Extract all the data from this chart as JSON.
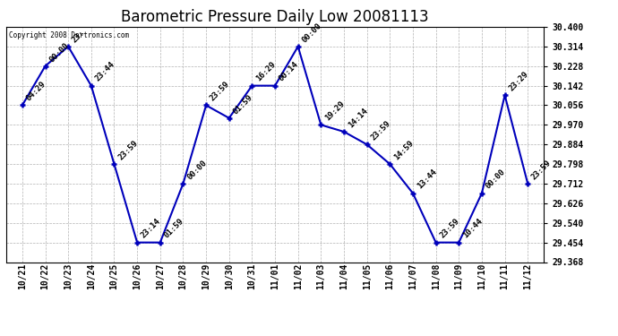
{
  "title": "Barometric Pressure Daily Low 20081113",
  "copyright": "Copyright 2008 Dartronics.com",
  "line_color": "#0000BB",
  "marker_color": "#0000BB",
  "background_color": "#ffffff",
  "grid_color": "#aaaaaa",
  "x_labels": [
    "10/21",
    "10/22",
    "10/23",
    "10/24",
    "10/25",
    "10/26",
    "10/27",
    "10/28",
    "10/29",
    "10/30",
    "10/31",
    "11/01",
    "11/02",
    "11/03",
    "11/04",
    "11/05",
    "11/06",
    "11/07",
    "11/08",
    "11/09",
    "11/10",
    "11/11",
    "11/12"
  ],
  "y_values": [
    30.056,
    30.228,
    30.314,
    30.142,
    29.798,
    29.454,
    29.454,
    29.712,
    30.056,
    30.0,
    30.142,
    30.142,
    30.314,
    29.97,
    29.94,
    29.884,
    29.798,
    29.67,
    29.454,
    29.454,
    29.67,
    30.1,
    29.712
  ],
  "time_labels": [
    "04:29",
    "00:00",
    "23:",
    "23:44",
    "23:59",
    "23:14",
    "01:59",
    "00:00",
    "23:59",
    "01:59",
    "16:29",
    "00:14",
    "00:00",
    "19:29",
    "14:14",
    "23:59",
    "14:59",
    "13:44",
    "23:59",
    "10:44",
    "00:00",
    "23:29",
    "23:59"
  ],
  "ylim_min": 29.368,
  "ylim_max": 30.4,
  "ytick_values": [
    29.368,
    29.454,
    29.54,
    29.626,
    29.712,
    29.798,
    29.884,
    29.97,
    30.056,
    30.142,
    30.228,
    30.314,
    30.4
  ],
  "title_fontsize": 12,
  "tick_fontsize": 7,
  "annot_fontsize": 6.5
}
